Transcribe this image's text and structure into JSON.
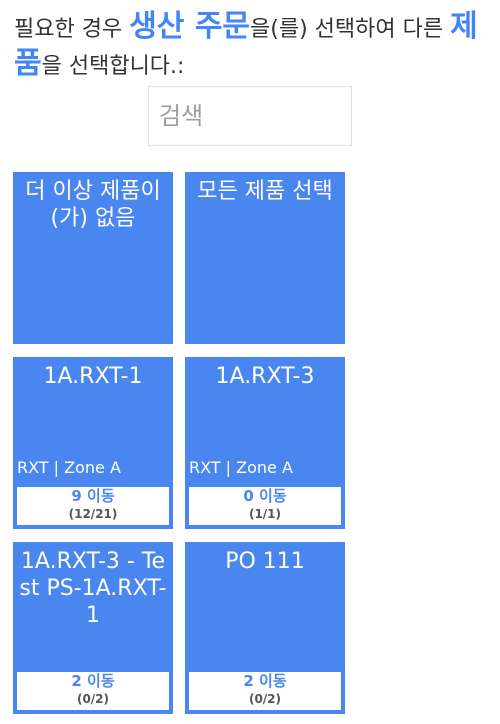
{
  "header": {
    "pre": "필요한 경우 ",
    "order_highlight": "생산 주문",
    "mid": "을(를) 선택하여 다른 ",
    "product_highlight": "제품",
    "post": "을 선택합니다.:"
  },
  "search": {
    "placeholder": "검색",
    "value": ""
  },
  "tiles": [
    {
      "title": "더 이상 제품이(가) 없음"
    },
    {
      "title": "모든 제품 선택"
    },
    {
      "title": "1A.RXT-1",
      "location": "RXT | Zone A",
      "moves": "9 이동",
      "ratio": "(12/21)"
    },
    {
      "title": "1A.RXT-3",
      "location": "RXT | Zone A",
      "moves": "0 이동",
      "ratio": "(1/1)"
    },
    {
      "title": "1A.RXT-3 - Test PS-1A.RXT-1",
      "moves": "2 이동",
      "ratio": "(0/2)"
    },
    {
      "title": "PO 111",
      "moves": "2 이동",
      "ratio": "(0/2)"
    }
  ],
  "colors": {
    "accent": "#4a86f0",
    "highlight_text": "#4285f4"
  }
}
